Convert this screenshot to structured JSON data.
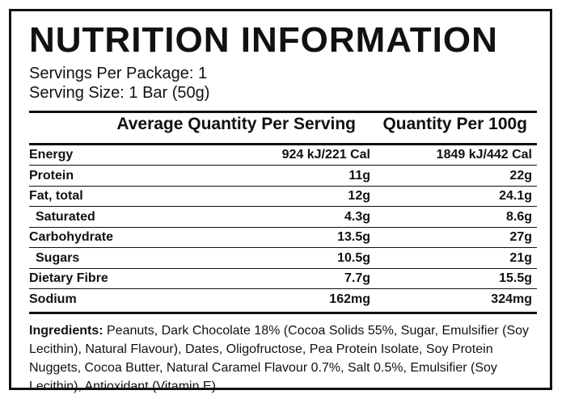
{
  "title": "NUTRITION INFORMATION",
  "servings_per_package": "Servings Per Package: 1",
  "serving_size": "Serving Size: 1 Bar (50g)",
  "columns": {
    "per_serving": "Average Quantity Per Serving",
    "per_100g": "Quantity Per 100g"
  },
  "rows": [
    {
      "name": "Energy",
      "per_serving": "924 kJ/221 Cal",
      "per_100g": "1849 kJ/442 Cal"
    },
    {
      "name": "Protein",
      "per_serving": "11g",
      "per_100g": "22g"
    },
    {
      "name": "Fat, total",
      "per_serving": "12g",
      "per_100g": "24.1g"
    },
    {
      "name": "Saturated",
      "per_serving": "4.3g",
      "per_100g": "8.6g"
    },
    {
      "name": "Carbohydrate",
      "per_serving": "13.5g",
      "per_100g": "27g"
    },
    {
      "name": "Sugars",
      "per_serving": "10.5g",
      "per_100g": "21g"
    },
    {
      "name": "Dietary Fibre",
      "per_serving": "7.7g",
      "per_100g": "15.5g"
    },
    {
      "name": "Sodium",
      "per_serving": "162mg",
      "per_100g": "324mg"
    }
  ],
  "ingredients": {
    "label": "Ingredients:",
    "text": "Peanuts, Dark Chocolate 18% (Cocoa Solids 55%, Sugar, Emulsifier (Soy Lecithin), Natural Flavour), Dates, Oligofructose, Pea Protein Isolate, Soy Protein Nuggets, Cocoa Butter, Natural Caramel Flavour 0.7%, Salt 0.5%, Emulsifier (Soy Lecithin), Antioxidant (Vitamin E)."
  }
}
